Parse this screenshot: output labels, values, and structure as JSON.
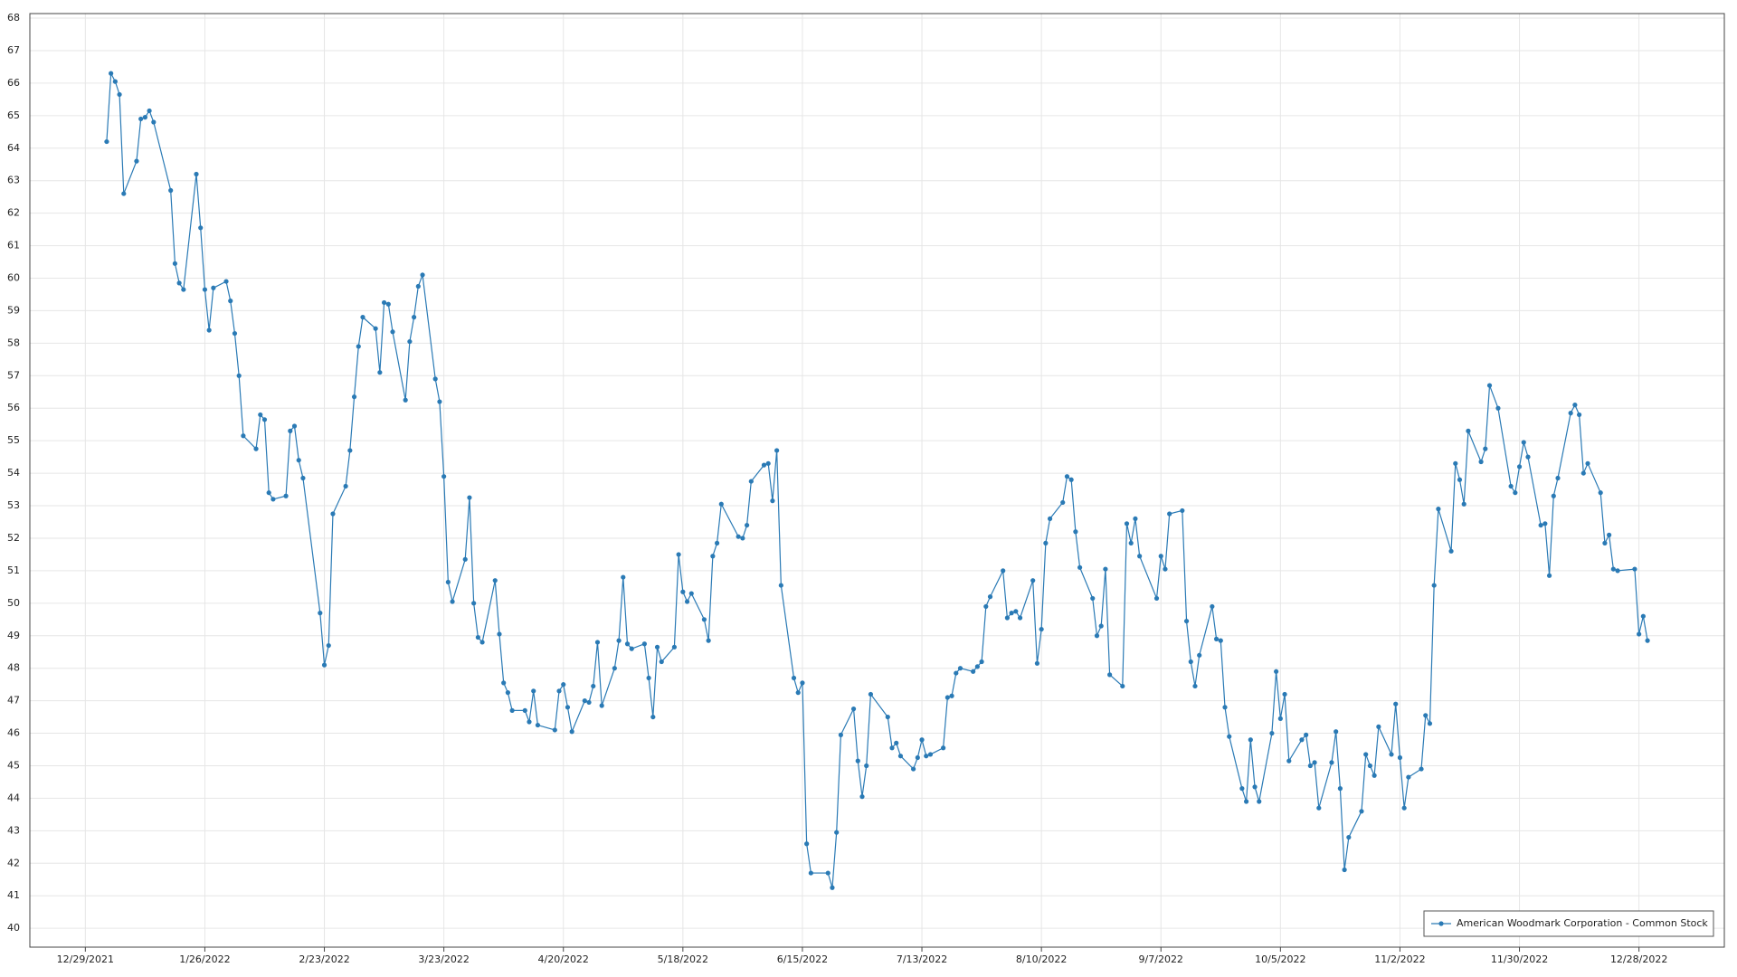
{
  "chart_data": {
    "type": "line",
    "x": [
      "1/3/2022",
      "1/4/2022",
      "1/5/2022",
      "1/6/2022",
      "1/7/2022",
      "1/10/2022",
      "1/11/2022",
      "1/12/2022",
      "1/13/2022",
      "1/14/2022",
      "1/18/2022",
      "1/19/2022",
      "1/20/2022",
      "1/21/2022",
      "1/24/2022",
      "1/25/2022",
      "1/26/2022",
      "1/27/2022",
      "1/28/2022",
      "1/31/2022",
      "2/1/2022",
      "2/2/2022",
      "2/3/2022",
      "2/4/2022",
      "2/7/2022",
      "2/8/2022",
      "2/9/2022",
      "2/10/2022",
      "2/11/2022",
      "2/14/2022",
      "2/15/2022",
      "2/16/2022",
      "2/17/2022",
      "2/18/2022",
      "2/22/2022",
      "2/23/2022",
      "2/24/2022",
      "2/25/2022",
      "2/28/2022",
      "3/1/2022",
      "3/2/2022",
      "3/3/2022",
      "3/4/2022",
      "3/7/2022",
      "3/8/2022",
      "3/9/2022",
      "3/10/2022",
      "3/11/2022",
      "3/14/2022",
      "3/15/2022",
      "3/16/2022",
      "3/17/2022",
      "3/18/2022",
      "3/21/2022",
      "3/22/2022",
      "3/23/2022",
      "3/24/2022",
      "3/25/2022",
      "3/28/2022",
      "3/29/2022",
      "3/30/2022",
      "3/31/2022",
      "4/1/2022",
      "4/4/2022",
      "4/5/2022",
      "4/6/2022",
      "4/7/2022",
      "4/8/2022",
      "4/11/2022",
      "4/12/2022",
      "4/13/2022",
      "4/14/2022",
      "4/18/2022",
      "4/19/2022",
      "4/20/2022",
      "4/21/2022",
      "4/22/2022",
      "4/25/2022",
      "4/26/2022",
      "4/27/2022",
      "4/28/2022",
      "4/29/2022",
      "5/2/2022",
      "5/3/2022",
      "5/4/2022",
      "5/5/2022",
      "5/6/2022",
      "5/9/2022",
      "5/10/2022",
      "5/11/2022",
      "5/12/2022",
      "5/13/2022",
      "5/16/2022",
      "5/17/2022",
      "5/18/2022",
      "5/19/2022",
      "5/20/2022",
      "5/23/2022",
      "5/24/2022",
      "5/25/2022",
      "5/26/2022",
      "5/27/2022",
      "5/31/2022",
      "6/1/2022",
      "6/2/2022",
      "6/3/2022",
      "6/6/2022",
      "6/7/2022",
      "6/8/2022",
      "6/9/2022",
      "6/10/2022",
      "6/13/2022",
      "6/14/2022",
      "6/15/2022",
      "6/16/2022",
      "6/17/2022",
      "6/21/2022",
      "6/22/2022",
      "6/23/2022",
      "6/24/2022",
      "6/27/2022",
      "6/28/2022",
      "6/29/2022",
      "6/30/2022",
      "7/1/2022",
      "7/5/2022",
      "7/6/2022",
      "7/7/2022",
      "7/8/2022",
      "7/11/2022",
      "7/12/2022",
      "7/13/2022",
      "7/14/2022",
      "7/15/2022",
      "7/18/2022",
      "7/19/2022",
      "7/20/2022",
      "7/21/2022",
      "7/22/2022",
      "7/25/2022",
      "7/26/2022",
      "7/27/2022",
      "7/28/2022",
      "7/29/2022",
      "8/1/2022",
      "8/2/2022",
      "8/3/2022",
      "8/4/2022",
      "8/5/2022",
      "8/8/2022",
      "8/9/2022",
      "8/10/2022",
      "8/11/2022",
      "8/12/2022",
      "8/15/2022",
      "8/16/2022",
      "8/17/2022",
      "8/18/2022",
      "8/19/2022",
      "8/22/2022",
      "8/23/2022",
      "8/24/2022",
      "8/25/2022",
      "8/26/2022",
      "8/29/2022",
      "8/30/2022",
      "8/31/2022",
      "9/1/2022",
      "9/2/2022",
      "9/6/2022",
      "9/7/2022",
      "9/8/2022",
      "9/9/2022",
      "9/12/2022",
      "9/13/2022",
      "9/14/2022",
      "9/15/2022",
      "9/16/2022",
      "9/19/2022",
      "9/20/2022",
      "9/21/2022",
      "9/22/2022",
      "9/23/2022",
      "9/26/2022",
      "9/27/2022",
      "9/28/2022",
      "9/29/2022",
      "9/30/2022",
      "10/3/2022",
      "10/4/2022",
      "10/5/2022",
      "10/6/2022",
      "10/7/2022",
      "10/10/2022",
      "10/11/2022",
      "10/12/2022",
      "10/13/2022",
      "10/14/2022",
      "10/17/2022",
      "10/18/2022",
      "10/19/2022",
      "10/20/2022",
      "10/21/2022",
      "10/24/2022",
      "10/25/2022",
      "10/26/2022",
      "10/27/2022",
      "10/28/2022",
      "10/31/2022",
      "11/1/2022",
      "11/2/2022",
      "11/3/2022",
      "11/4/2022",
      "11/7/2022",
      "11/8/2022",
      "11/9/2022",
      "11/10/2022",
      "11/11/2022",
      "11/14/2022",
      "11/15/2022",
      "11/16/2022",
      "11/17/2022",
      "11/18/2022",
      "11/21/2022",
      "11/22/2022",
      "11/23/2022",
      "11/25/2022",
      "11/28/2022",
      "11/29/2022",
      "11/30/2022",
      "12/1/2022",
      "12/2/2022",
      "12/5/2022",
      "12/6/2022",
      "12/7/2022",
      "12/8/2022",
      "12/9/2022",
      "12/12/2022",
      "12/13/2022",
      "12/14/2022",
      "12/15/2022",
      "12/16/2022",
      "12/19/2022",
      "12/20/2022",
      "12/21/2022",
      "12/22/2022",
      "12/23/2022",
      "12/27/2022",
      "12/28/2022",
      "12/29/2022",
      "12/30/2022"
    ],
    "series": [
      {
        "name": "American Woodmark Corporation - Common Stock",
        "color": "#2a7ab5",
        "values": [
          64.2,
          66.3,
          66.05,
          65.65,
          62.6,
          63.6,
          64.9,
          64.95,
          65.15,
          64.8,
          62.7,
          60.45,
          59.85,
          59.65,
          63.2,
          61.55,
          59.65,
          58.4,
          59.7,
          59.9,
          59.3,
          58.3,
          57,
          55.15,
          54.75,
          55.8,
          55.65,
          53.4,
          53.2,
          53.3,
          55.3,
          55.45,
          54.4,
          53.85,
          49.7,
          48.1,
          48.7,
          52.75,
          53.6,
          54.7,
          56.35,
          57.9,
          58.8,
          58.45,
          57.1,
          59.25,
          59.2,
          58.35,
          56.25,
          58.05,
          58.8,
          59.75,
          60.1,
          56.9,
          56.2,
          53.9,
          50.65,
          50.05,
          51.35,
          53.25,
          50,
          48.95,
          48.8,
          50.7,
          49.05,
          47.55,
          47.25,
          46.7,
          46.7,
          46.35,
          47.3,
          46.25,
          46.1,
          47.3,
          47.5,
          46.8,
          46.05,
          47,
          46.95,
          47.45,
          48.8,
          46.85,
          48,
          48.85,
          50.8,
          48.75,
          48.6,
          48.75,
          47.7,
          46.5,
          48.65,
          48.2,
          48.65,
          51.5,
          50.35,
          50.05,
          50.3,
          49.5,
          48.85,
          51.45,
          51.85,
          53.05,
          52.05,
          52,
          52.4,
          53.75,
          54.25,
          54.3,
          53.15,
          54.7,
          50.55,
          47.7,
          47.25,
          47.55,
          42.6,
          41.7,
          41.7,
          41.25,
          42.95,
          45.95,
          46.75,
          45.15,
          44.05,
          45,
          47.2,
          46.5,
          45.55,
          45.7,
          45.3,
          44.9,
          45.25,
          45.8,
          45.3,
          45.35,
          45.55,
          47.1,
          47.15,
          47.85,
          48,
          47.9,
          48.05,
          48.2,
          49.9,
          50.2,
          51,
          49.55,
          49.7,
          49.75,
          49.55,
          50.7,
          48.15,
          49.2,
          51.85,
          52.6,
          53.1,
          53.9,
          53.8,
          52.2,
          51.1,
          50.15,
          49,
          49.3,
          51.05,
          47.8,
          47.45,
          52.45,
          51.85,
          52.6,
          51.45,
          50.15,
          51.45,
          51.05,
          52.75,
          52.85,
          49.45,
          48.2,
          47.45,
          48.4,
          49.9,
          48.9,
          48.85,
          46.8,
          45.9,
          44.3,
          43.9,
          45.8,
          44.35,
          43.9,
          46,
          47.9,
          46.45,
          47.2,
          45.15,
          45.8,
          45.95,
          45,
          45.1,
          43.7,
          45.1,
          46.05,
          44.3,
          41.8,
          42.8,
          43.6,
          45.35,
          45,
          44.7,
          46.2,
          45.35,
          46.9,
          45.25,
          43.7,
          44.65,
          44.9,
          46.55,
          46.3,
          50.55,
          52.9,
          51.6,
          54.3,
          53.8,
          53.05,
          55.3,
          54.35,
          54.75,
          56.7,
          56,
          53.6,
          53.4,
          54.2,
          54.95,
          54.5,
          52.4,
          52.45,
          50.85,
          53.3,
          53.85,
          55.85,
          56.1,
          55.8,
          54,
          54.3,
          53.4,
          51.85,
          52.1,
          51.05,
          51,
          51.05,
          49.05,
          49.6,
          48.85
        ]
      }
    ],
    "xlim": [
      "12/16/2021",
      "1/17/2023"
    ],
    "xticks": [
      "12/29/2021",
      "1/26/2022",
      "2/23/2022",
      "3/23/2022",
      "4/20/2022",
      "5/18/2022",
      "6/15/2022",
      "7/13/2022",
      "8/10/2022",
      "9/7/2022",
      "10/5/2022",
      "11/2/2022",
      "11/30/2022",
      "12/28/2022"
    ],
    "ylim": [
      39.42,
      68.14
    ],
    "yticks": [
      40,
      41,
      42,
      43,
      44,
      45,
      46,
      47,
      48,
      49,
      50,
      51,
      52,
      53,
      54,
      55,
      56,
      57,
      58,
      59,
      60,
      61,
      62,
      63,
      64,
      65,
      66,
      67,
      68
    ],
    "grid": true,
    "legend": "lower right",
    "markers": true
  }
}
